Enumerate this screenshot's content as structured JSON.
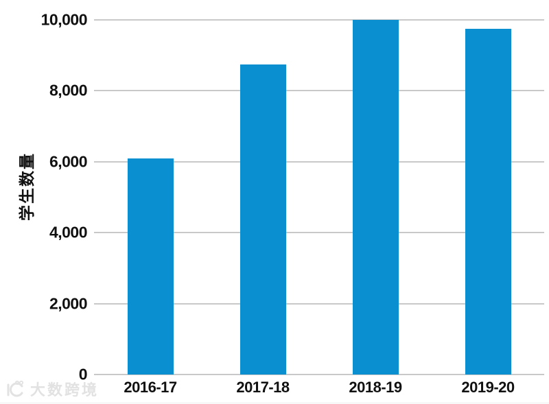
{
  "chart_data": {
    "type": "bar",
    "title": "",
    "xlabel": "",
    "ylabel": "学生数量",
    "categories": [
      "2016-17",
      "2017-18",
      "2018-19",
      "2019-20"
    ],
    "values": [
      6100,
      8750,
      10000,
      9750
    ],
    "ylim": [
      0,
      10000
    ],
    "yticks": [
      0,
      2000,
      4000,
      6000,
      8000,
      10000
    ],
    "ytick_labels": [
      "0",
      "2,000",
      "4,000",
      "6,000",
      "8,000",
      "10,000"
    ],
    "grid": true,
    "legend": false,
    "colors": {
      "bar": "#0a8fd0",
      "gridline": "#c8c8c8",
      "text": "#111111",
      "background": "#ffffff",
      "watermark": "#e2e2e2"
    }
  },
  "watermark": {
    "text": "大数跨境"
  }
}
